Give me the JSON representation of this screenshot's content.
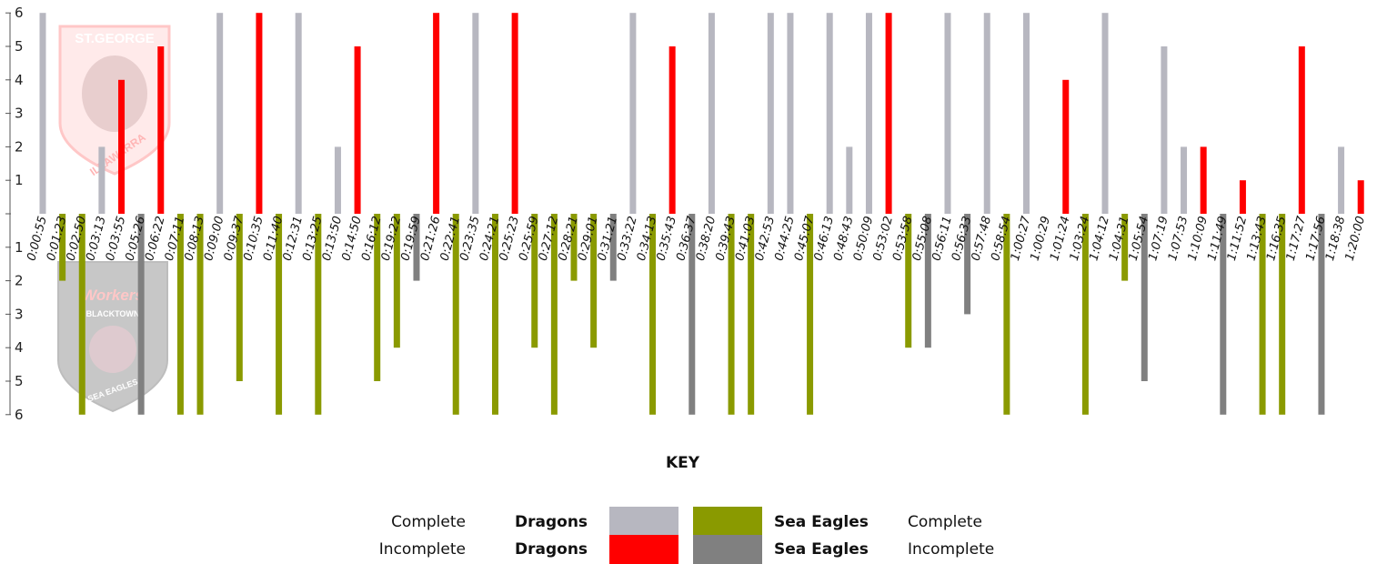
{
  "chart_data": {
    "type": "bar",
    "title": "",
    "xlabel": "",
    "ylabel": "",
    "ylim": [
      -6,
      6
    ],
    "y_ticks": [
      "6",
      "5",
      "4",
      "3",
      "2",
      "1",
      "",
      "1",
      "2",
      "3",
      "4",
      "5",
      "6"
    ],
    "colors": {
      "dragons_complete": "#b7b7c0",
      "dragons_incomplete": "#ff0000",
      "seaeagles_complete": "#8a9a00",
      "seaeagles_incomplete": "#808080"
    },
    "categories": [
      "0:00:55",
      "0:01:23",
      "0:02:50",
      "0:03:13",
      "0:03:55",
      "0:05:26",
      "0:06:22",
      "0:07:11",
      "0:08:13",
      "0:09:00",
      "0:09:37",
      "0:10:35",
      "0:11:40",
      "0:12:31",
      "0:13:25",
      "0:13:50",
      "0:14:50",
      "0:16:12",
      "0:19:22",
      "0:19:59",
      "0:21:26",
      "0:22:41",
      "0:23:35",
      "0:24:21",
      "0:25:23",
      "0:25:59",
      "0:27:12",
      "0:28:21",
      "0:29:01",
      "0:31:21",
      "0:33:22",
      "0:34:13",
      "0:35:43",
      "0:36:37",
      "0:38:20",
      "0:39:43",
      "0:41:03",
      "0:42:53",
      "0:44:25",
      "0:45:07",
      "0:46:13",
      "0:48:43",
      "0:50:09",
      "0:53:02",
      "0:53:58",
      "0:55:08",
      "0:56:11",
      "0:56:33",
      "0:57:48",
      "0:58:54",
      "1:00:27",
      "1:00:29",
      "1:01:24",
      "1:03:24",
      "1:04:12",
      "1:04:31",
      "1:05:54",
      "1:07:19",
      "1:07:53",
      "1:10:09",
      "1:11:49",
      "1:11:52",
      "1:13:43",
      "1:16:35",
      "1:17:27",
      "1:17:56",
      "1:18:38",
      "1:20:00"
    ],
    "series": [
      {
        "name": "Dragons Complete",
        "key": "dragons_complete",
        "values": [
          6,
          0,
          0,
          2,
          0,
          0,
          0,
          0,
          0,
          6,
          0,
          0,
          0,
          6,
          0,
          2,
          0,
          0,
          0,
          0,
          0,
          0,
          6,
          0,
          0,
          0,
          0,
          0,
          0,
          0,
          6,
          0,
          0,
          0,
          6,
          0,
          0,
          6,
          6,
          0,
          6,
          2,
          6,
          0,
          0,
          0,
          6,
          0,
          6,
          0,
          6,
          0,
          0,
          0,
          6,
          0,
          0,
          5,
          2,
          0,
          0,
          0,
          0,
          0,
          0,
          0,
          2,
          0
        ]
      },
      {
        "name": "Dragons Incomplete",
        "key": "dragons_incomplete",
        "values": [
          0,
          0,
          0,
          0,
          4,
          0,
          5,
          0,
          0,
          0,
          0,
          6,
          0,
          0,
          0,
          0,
          5,
          0,
          0,
          0,
          6,
          0,
          0,
          0,
          6,
          0,
          0,
          0,
          0,
          0,
          0,
          0,
          5,
          0,
          0,
          0,
          0,
          0,
          0,
          0,
          0,
          0,
          0,
          6,
          0,
          0,
          0,
          0,
          0,
          0,
          0,
          0,
          4,
          0,
          0,
          0,
          0,
          0,
          0,
          2,
          0,
          1,
          0,
          0,
          5,
          0,
          0,
          1
        ]
      },
      {
        "name": "Sea Eagles Complete",
        "key": "seaeagles_complete",
        "values": [
          0,
          -2,
          -6,
          0,
          0,
          0,
          0,
          -6,
          -6,
          0,
          -5,
          0,
          -6,
          0,
          -6,
          0,
          0,
          -5,
          -4,
          0,
          0,
          -6,
          0,
          -6,
          0,
          -4,
          -6,
          -2,
          -4,
          0,
          0,
          -6,
          0,
          0,
          0,
          -6,
          -6,
          0,
          0,
          -6,
          0,
          0,
          0,
          0,
          -4,
          0,
          0,
          0,
          0,
          -6,
          0,
          0,
          0,
          -6,
          0,
          -2,
          0,
          0,
          0,
          0,
          0,
          0,
          -6,
          -6,
          0,
          0,
          0,
          0
        ]
      },
      {
        "name": "Sea Eagles Incomplete",
        "key": "seaeagles_incomplete",
        "values": [
          0,
          0,
          0,
          0,
          0,
          -6,
          0,
          0,
          0,
          0,
          0,
          0,
          0,
          0,
          0,
          0,
          0,
          0,
          0,
          -2,
          0,
          0,
          0,
          0,
          0,
          0,
          0,
          0,
          0,
          -2,
          0,
          0,
          0,
          -6,
          0,
          0,
          0,
          0,
          0,
          0,
          0,
          0,
          0,
          0,
          0,
          -4,
          0,
          -3,
          0,
          0,
          0,
          0,
          0,
          0,
          0,
          0,
          -5,
          0,
          0,
          0,
          -6,
          0,
          0,
          0,
          0,
          -6,
          0,
          0
        ]
      }
    ]
  },
  "key": {
    "title": "KEY",
    "complete": "Complete",
    "incomplete": "Incomplete",
    "dragons": "Dragons",
    "sea_eagles": "Sea Eagles"
  },
  "logos": {
    "dragons_top": "ST.GEORGE",
    "dragons_bottom": "ILLAWARRA",
    "seaeagles_top": "Workers",
    "seaeagles_mid": "BLACKTOWN",
    "seaeagles_bottom": "SEA EAGLES"
  }
}
